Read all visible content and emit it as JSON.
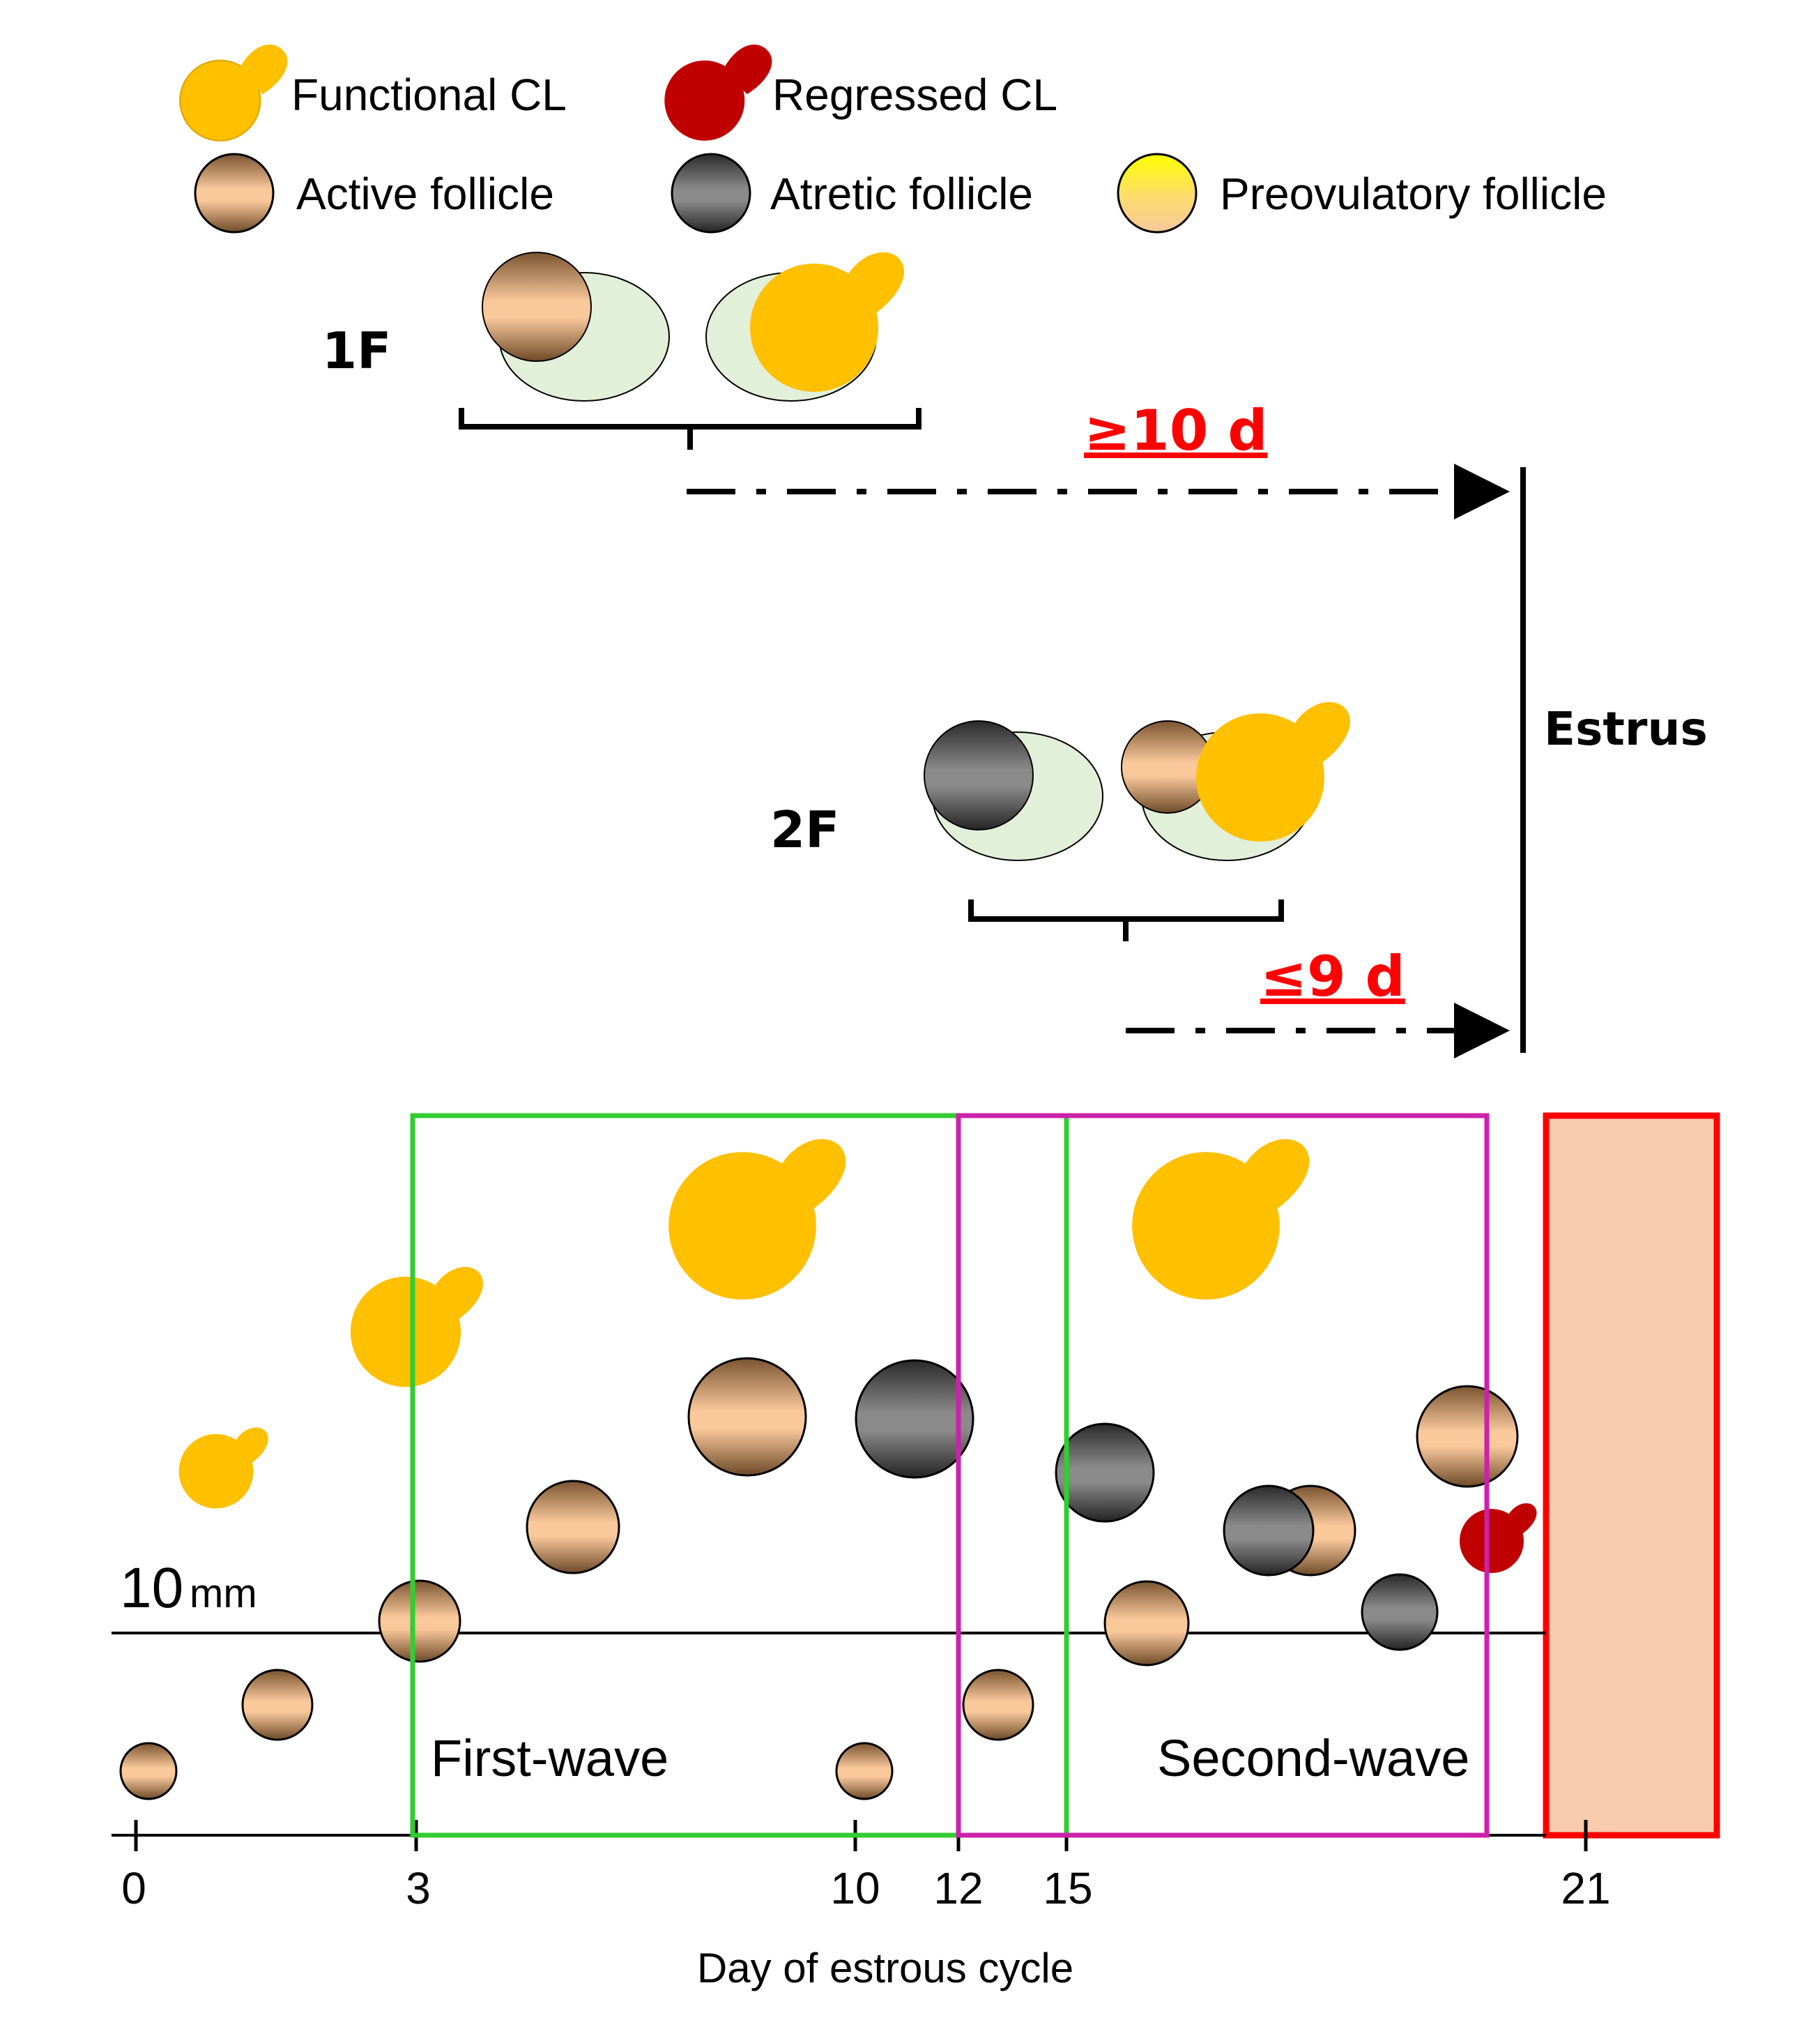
{
  "legend": {
    "functional_cl": "Functional CL",
    "regressed_cl": "Regressed CL",
    "active_follicle": "Active follicle",
    "atretic_follicle": "Atretic follicle",
    "preovulatory_follicle": "Preovulatory follicle"
  },
  "scenarios": {
    "one_f": {
      "label": "1F",
      "duration": "≥10 d"
    },
    "two_f": {
      "label": "2F",
      "duration": "≤9 d"
    },
    "estrus": "Estrus"
  },
  "timeline": {
    "threshold_value": "10",
    "threshold_unit": "mm",
    "first_wave": "First-wave",
    "second_wave": "Second-wave",
    "x_label": "Day of estrous cycle",
    "ticks": [
      "0",
      "3",
      "10",
      "12",
      "15",
      "21"
    ]
  },
  "colors": {
    "functional_cl": "#FFC000",
    "regressed_cl": "#C00000",
    "follicle_light": "#F9C89B",
    "follicle_dark": "#7A5430",
    "atretic_light": "#8A8A8A",
    "atretic_dark": "#2A2A2A",
    "ovary": "#E2EFD9",
    "first_wave_box": "#33CC33",
    "second_wave_box": "#CC22AA",
    "estrus_box": "#FF0000",
    "estrus_fill": "#F8CBAD",
    "duration_text": "#FF0000"
  },
  "icons": [
    "functional-cl-icon",
    "regressed-cl-icon",
    "active-follicle-icon",
    "atretic-follicle-icon",
    "preovulatory-follicle-icon"
  ]
}
